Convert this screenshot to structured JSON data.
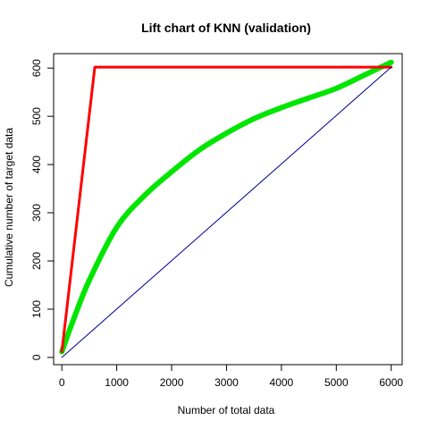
{
  "chart_data": {
    "type": "line",
    "title": "Lift chart of KNN (validation)",
    "xlabel": "Number of total data",
    "ylabel": "Cumulative number of target data",
    "xlim": [
      -150,
      6200
    ],
    "ylim": [
      -15,
      630
    ],
    "x_ticks": [
      0,
      1000,
      2000,
      3000,
      4000,
      5000,
      6000
    ],
    "y_ticks": [
      0,
      100,
      200,
      300,
      400,
      500,
      600
    ],
    "grid": false,
    "legend": "none",
    "series": [
      {
        "color": "#00e600",
        "line_width": 6,
        "points": [
          [
            0,
            12
          ],
          [
            200,
            75
          ],
          [
            500,
            160
          ],
          [
            1000,
            270
          ],
          [
            1500,
            335
          ],
          [
            2000,
            385
          ],
          [
            2500,
            430
          ],
          [
            3000,
            465
          ],
          [
            3500,
            495
          ],
          [
            4000,
            518
          ],
          [
            4500,
            538
          ],
          [
            5000,
            558
          ],
          [
            5500,
            585
          ],
          [
            6000,
            612
          ]
        ]
      },
      {
        "color": "#ff0000",
        "line_width": 3,
        "points": [
          [
            0,
            12
          ],
          [
            600,
            602
          ],
          [
            6000,
            602
          ]
        ]
      },
      {
        "color": "#00008b",
        "line_width": 1,
        "points": [
          [
            0,
            0
          ],
          [
            6000,
            602
          ]
        ]
      }
    ]
  }
}
